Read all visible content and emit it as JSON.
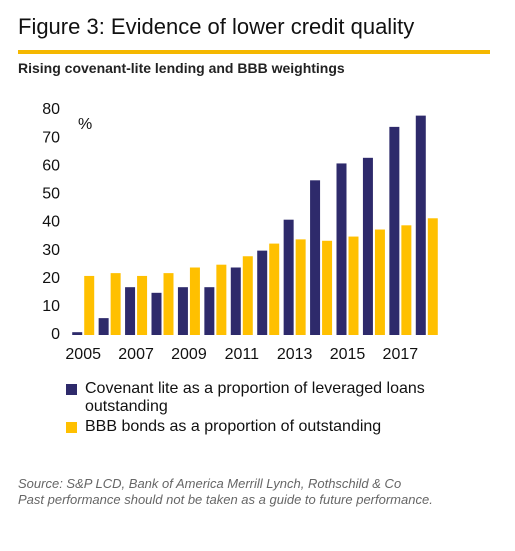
{
  "chart_data": {
    "type": "bar",
    "title": "Figure 3: Evidence of lower credit quality",
    "subtitle": "Rising covenant-lite lending and BBB weightings",
    "y_label": "%",
    "categories": [
      "2005",
      null,
      "2007",
      null,
      "2009",
      null,
      "2011",
      null,
      "2013",
      null,
      "2015",
      null,
      "2017",
      null
    ],
    "series": [
      {
        "name": "Covenant lite as a proportion of leveraged loans outstanding",
        "color": "#2e2a6b",
        "values": [
          1,
          6,
          17,
          15,
          17,
          17,
          24,
          30,
          41,
          55,
          61,
          63,
          74,
          78
        ]
      },
      {
        "name": "BBB bonds as a proportion of outstanding",
        "color": "#ffc000",
        "values": [
          21,
          22,
          21,
          22,
          24,
          25,
          28,
          32.5,
          34,
          33.5,
          35,
          37.5,
          39,
          41.5
        ]
      }
    ],
    "ylim": [
      0,
      80
    ],
    "yticks": [
      0,
      10,
      20,
      30,
      40,
      50,
      60,
      70,
      80
    ],
    "grid": false,
    "source": [
      "Source: S&P LCD, Bank of America Merrill Lynch, Rothschild & Co",
      "Past performance should not be taken as a guide to future performance."
    ]
  }
}
